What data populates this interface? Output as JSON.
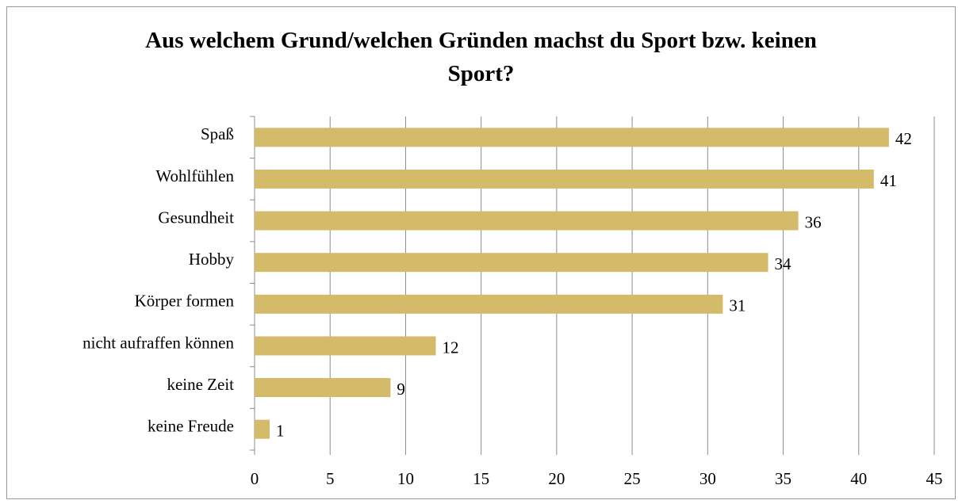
{
  "chart_data": {
    "type": "hbar",
    "title": "Aus welchem Grund/welchen Gründen machst du Sport bzw. keinen Sport?",
    "categories": [
      "Spaß",
      "Wohlfühlen",
      "Gesundheit",
      "Hobby",
      "Körper formen",
      "nicht aufraffen können",
      "keine Zeit",
      "keine Freude"
    ],
    "values": [
      42,
      41,
      36,
      34,
      31,
      12,
      9,
      1
    ],
    "color": "#d4bb6a",
    "xlim": [
      0,
      45
    ],
    "xticks": [
      0,
      5,
      10,
      15,
      20,
      25,
      30,
      35,
      40,
      45
    ],
    "grid": true
  }
}
